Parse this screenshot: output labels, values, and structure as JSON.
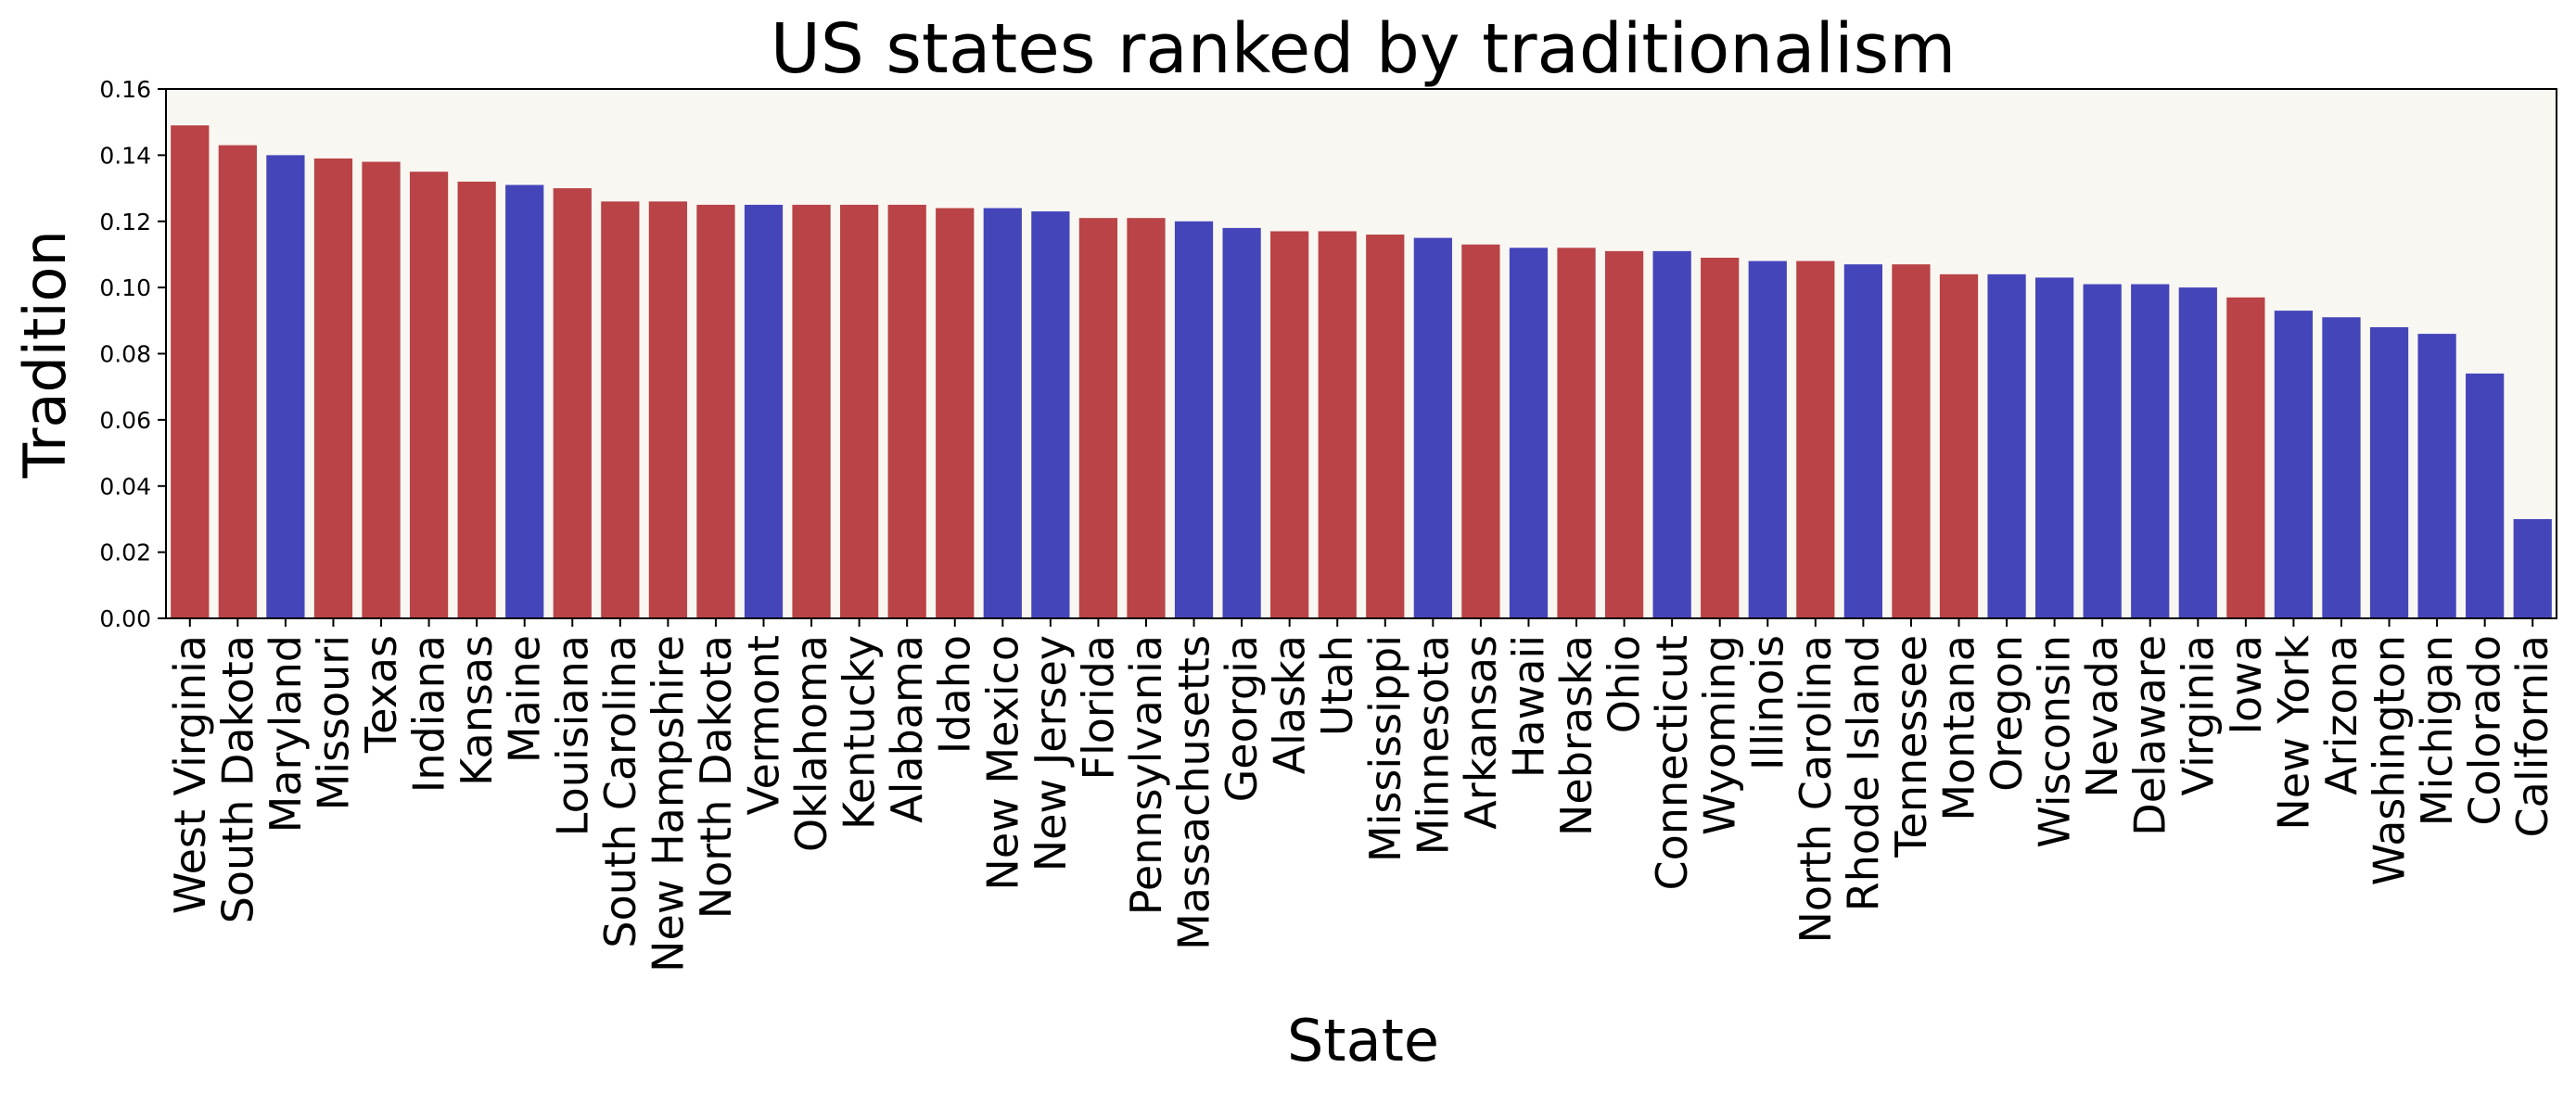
{
  "chart_data": {
    "type": "bar",
    "title": "US states ranked by traditionalism",
    "xlabel": "State",
    "ylabel": "Tradition",
    "ylim": [
      0,
      0.16
    ],
    "yticks": [
      "0.00",
      "0.02",
      "0.04",
      "0.06",
      "0.08",
      "0.10",
      "0.12",
      "0.14",
      "0.16"
    ],
    "grid": false,
    "legend": "none",
    "colors": {
      "republican": "#B94346",
      "democrat": "#4545BA",
      "plot_background": "#F9F7F2"
    },
    "categories": [
      "West Virginia",
      "South Dakota",
      "Maryland",
      "Missouri",
      "Texas",
      "Indiana",
      "Kansas",
      "Maine",
      "Louisiana",
      "South Carolina",
      "New Hampshire",
      "North Dakota",
      "Vermont",
      "Oklahoma",
      "Kentucky",
      "Alabama",
      "Idaho",
      "New Mexico",
      "New Jersey",
      "Florida",
      "Pennsylvania",
      "Massachusetts",
      "Georgia",
      "Alaska",
      "Utah",
      "Mississippi",
      "Minnesota",
      "Arkansas",
      "Hawaii",
      "Nebraska",
      "Ohio",
      "Connecticut",
      "Wyoming",
      "Illinois",
      "North Carolina",
      "Rhode Island",
      "Tennessee",
      "Montana",
      "Oregon",
      "Wisconsin",
      "Nevada",
      "Delaware",
      "Virginia",
      "Iowa",
      "New York",
      "Arizona",
      "Washington",
      "Michigan",
      "Colorado",
      "California"
    ],
    "values": [
      0.149,
      0.143,
      0.14,
      0.139,
      0.138,
      0.135,
      0.132,
      0.131,
      0.13,
      0.126,
      0.126,
      0.125,
      0.125,
      0.125,
      0.125,
      0.125,
      0.124,
      0.124,
      0.123,
      0.121,
      0.121,
      0.12,
      0.118,
      0.117,
      0.117,
      0.116,
      0.115,
      0.113,
      0.112,
      0.112,
      0.111,
      0.111,
      0.109,
      0.108,
      0.108,
      0.107,
      0.107,
      0.104,
      0.104,
      0.103,
      0.101,
      0.101,
      0.1,
      0.097,
      0.093,
      0.091,
      0.088,
      0.086,
      0.074,
      0.03
    ],
    "party": [
      "R",
      "R",
      "D",
      "R",
      "R",
      "R",
      "R",
      "D",
      "R",
      "R",
      "R",
      "R",
      "D",
      "R",
      "R",
      "R",
      "R",
      "D",
      "D",
      "R",
      "R",
      "D",
      "D",
      "R",
      "R",
      "R",
      "D",
      "R",
      "D",
      "R",
      "R",
      "D",
      "R",
      "D",
      "R",
      "D",
      "R",
      "R",
      "D",
      "D",
      "D",
      "D",
      "D",
      "R",
      "D",
      "D",
      "D",
      "D",
      "D",
      "D"
    ]
  }
}
